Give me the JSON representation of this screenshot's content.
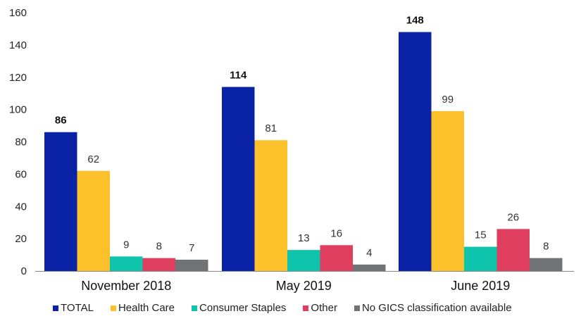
{
  "chart_data": {
    "type": "bar",
    "title": "",
    "xlabel": "",
    "ylabel": "",
    "ylim": [
      0,
      160
    ],
    "yticks": [
      0,
      20,
      40,
      60,
      80,
      100,
      120,
      140,
      160
    ],
    "grid": false,
    "legend_position": "bottom",
    "categories": [
      "November 2018",
      "May 2019",
      "June 2019"
    ],
    "series": [
      {
        "name": "TOTAL",
        "color": "#0a22a6",
        "values": [
          86,
          114,
          148
        ],
        "label_bold": true
      },
      {
        "name": "Health Care",
        "color": "#fcc02a",
        "values": [
          62,
          81,
          99
        ],
        "label_bold": false
      },
      {
        "name": "Consumer Staples",
        "color": "#0fc4ac",
        "values": [
          9,
          13,
          15
        ],
        "label_bold": false
      },
      {
        "name": "Other",
        "color": "#e03e5e",
        "values": [
          8,
          16,
          26
        ],
        "label_bold": false
      },
      {
        "name": "No GICS classification available",
        "color": "#6f7276",
        "values": [
          7,
          4,
          8
        ],
        "label_bold": false
      }
    ]
  }
}
